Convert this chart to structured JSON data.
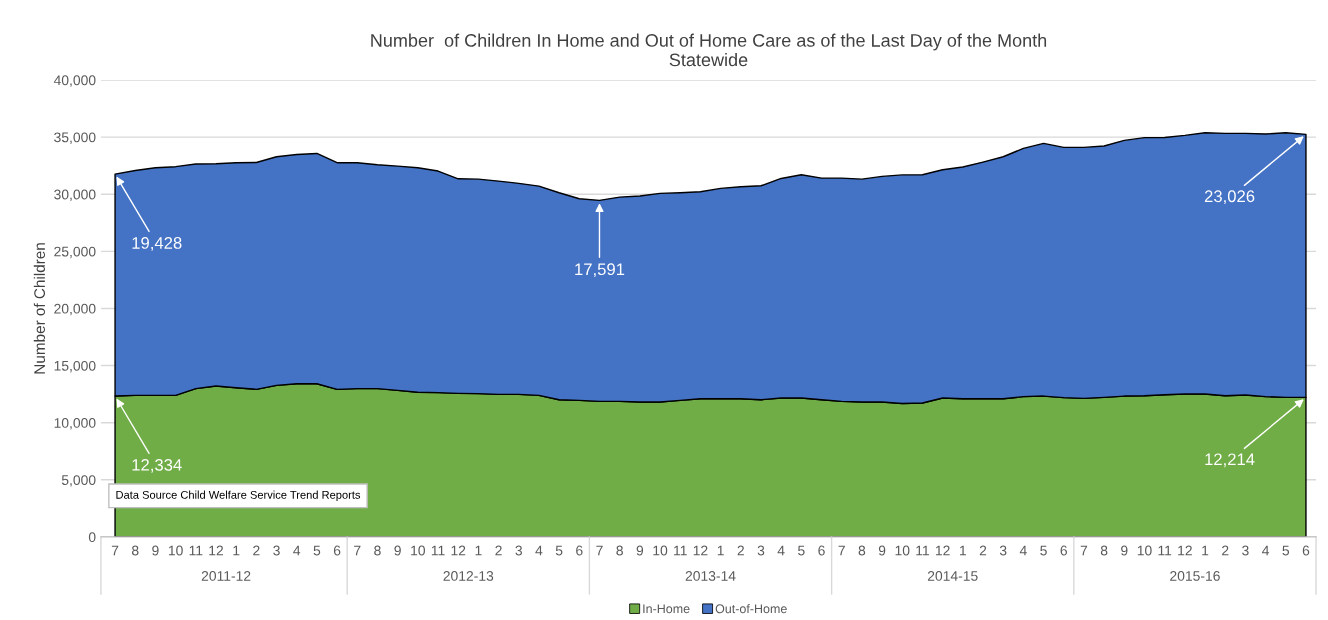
{
  "chart_data": {
    "type": "area",
    "stacked": true,
    "title": "Number  of Children In Home and Out of Home Care as of the Last Day of the Month",
    "subtitle": "Statewide",
    "ylabel": "Number of Children",
    "categories": [
      "7",
      "8",
      "9",
      "10",
      "11",
      "12",
      "1",
      "2",
      "3",
      "4",
      "5",
      "6",
      "7",
      "8",
      "9",
      "10",
      "11",
      "12",
      "1",
      "2",
      "3",
      "4",
      "5",
      "6",
      "7",
      "8",
      "9",
      "10",
      "11",
      "12",
      "1",
      "2",
      "3",
      "4",
      "5",
      "6",
      "7",
      "8",
      "9",
      "10",
      "11",
      "12",
      "1",
      "2",
      "3",
      "4",
      "5",
      "6",
      "7",
      "8",
      "9",
      "10",
      "11",
      "12",
      "1",
      "2",
      "3",
      "4",
      "5",
      "6"
    ],
    "series": [
      {
        "name": "In-Home",
        "color": "#70ad47",
        "values": [
          12334,
          12390,
          12390,
          12390,
          12980,
          13210,
          13060,
          12920,
          13270,
          13410,
          13410,
          12920,
          12980,
          12980,
          12830,
          12660,
          12630,
          12570,
          12540,
          12480,
          12480,
          12390,
          12010,
          11950,
          11870,
          11870,
          11810,
          11810,
          11950,
          12100,
          12100,
          12100,
          12010,
          12160,
          12160,
          12010,
          11870,
          11810,
          11810,
          11680,
          11720,
          12160,
          12100,
          12100,
          12100,
          12280,
          12330,
          12190,
          12130,
          12220,
          12330,
          12360,
          12450,
          12510,
          12510,
          12360,
          12420,
          12280,
          12220,
          12214
        ],
        "value_labels": [
          "12,334",
          null,
          null,
          null,
          null,
          null,
          null,
          null,
          null,
          null,
          null,
          null,
          null,
          null,
          null,
          null,
          null,
          null,
          null,
          null,
          null,
          null,
          null,
          null,
          null,
          null,
          null,
          null,
          null,
          null,
          null,
          null,
          null,
          null,
          null,
          null,
          null,
          null,
          null,
          null,
          null,
          null,
          null,
          null,
          null,
          null,
          null,
          null,
          null,
          null,
          null,
          null,
          null,
          null,
          null,
          null,
          null,
          null,
          null,
          "12,214"
        ]
      },
      {
        "name": "Out-of-Home",
        "color": "#4472c4",
        "values": [
          19428,
          19690,
          19930,
          20020,
          19660,
          19460,
          19700,
          19860,
          20010,
          20070,
          20160,
          19840,
          19780,
          19600,
          19630,
          19660,
          19400,
          18780,
          18780,
          18670,
          18470,
          18320,
          18120,
          17650,
          17591,
          17880,
          18030,
          18260,
          18180,
          18120,
          18410,
          18550,
          18730,
          19220,
          19540,
          19400,
          19540,
          19510,
          19750,
          20010,
          19980,
          19980,
          20280,
          20710,
          21180,
          21730,
          22120,
          21910,
          21970,
          22000,
          22380,
          22590,
          22520,
          22640,
          22870,
          22970,
          22910,
          22990,
          23160,
          23026
        ],
        "value_labels": [
          "19,428",
          null,
          null,
          null,
          null,
          null,
          null,
          null,
          null,
          null,
          null,
          null,
          null,
          null,
          null,
          null,
          null,
          null,
          null,
          null,
          null,
          null,
          null,
          null,
          "17,591",
          null,
          null,
          null,
          null,
          null,
          null,
          null,
          null,
          null,
          null,
          null,
          null,
          null,
          null,
          null,
          null,
          null,
          null,
          null,
          null,
          null,
          null,
          null,
          null,
          null,
          null,
          null,
          null,
          null,
          null,
          null,
          null,
          null,
          null,
          "23,026"
        ]
      }
    ],
    "ylim": [
      0,
      40000
    ],
    "yticks": [
      {
        "value": 0,
        "label": "0"
      },
      {
        "value": 5000,
        "label": "5,000"
      },
      {
        "value": 10000,
        "label": "10,000"
      },
      {
        "value": 15000,
        "label": "15,000"
      },
      {
        "value": 20000,
        "label": "20,000"
      },
      {
        "value": 25000,
        "label": "25,000"
      },
      {
        "value": 30000,
        "label": "30,000"
      },
      {
        "value": 35000,
        "label": "35,000"
      },
      {
        "value": 40000,
        "label": "40,000"
      }
    ],
    "grid": "y",
    "legend": "bottom",
    "annotations": [
      "Data Source Child Welfare Service Trend Reports",
      "2011-12",
      "2012-13",
      "2013-14",
      "2014-15",
      "2015-16"
    ]
  }
}
